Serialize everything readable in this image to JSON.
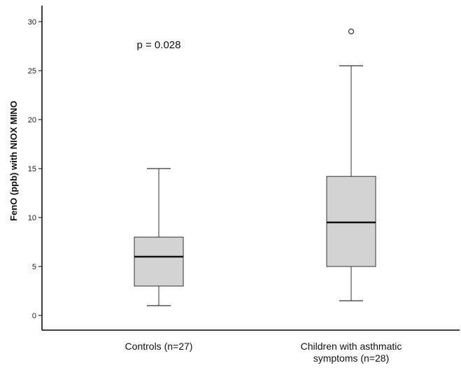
{
  "chart_data": {
    "type": "boxplot",
    "ylabel": "FenO (ppb) with NIOX MINO",
    "xlabel": "",
    "ylim": [
      -1.5,
      31.5
    ],
    "yticks": [
      0,
      5,
      10,
      15,
      20,
      25,
      30
    ],
    "grid": false,
    "annotation": "p = 0.028",
    "groups": [
      {
        "label_lines": [
          "Controls (n=27)"
        ],
        "whisker_low": 1,
        "q1": 3,
        "median": 6,
        "q3": 8,
        "whisker_high": 15,
        "outliers": []
      },
      {
        "label_lines": [
          "Children with asthmatic",
          "symptoms (n=28)"
        ],
        "whisker_low": 1.5,
        "q1": 5,
        "median": 9.5,
        "q3": 14.2,
        "whisker_high": 25.5,
        "outliers": [
          29
        ]
      }
    ],
    "colors": {
      "box_fill": "#d3d3d3",
      "stroke": "#333333",
      "median": "#111111"
    }
  }
}
